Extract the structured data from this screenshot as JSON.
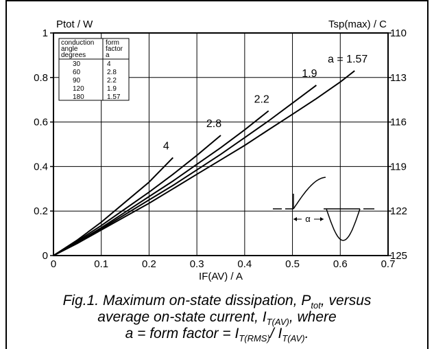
{
  "chart_data": {
    "type": "line",
    "ylabel": "Ptot / W",
    "y2label": "Tsp(max) / C",
    "xlabel": "IF(AV) / A",
    "xlim": [
      0,
      0.7
    ],
    "ylim": [
      0,
      1
    ],
    "y2lim": [
      125,
      110
    ],
    "xticks": [
      "0",
      "0.1",
      "0.2",
      "0.3",
      "0.4",
      "0.5",
      "0.6",
      "0.7"
    ],
    "yticks": [
      "0",
      "0.2",
      "0.4",
      "0.6",
      "0.8",
      "1"
    ],
    "y2ticks": [
      "125",
      "122",
      "119",
      "116",
      "113",
      "110"
    ],
    "grid": true,
    "series": [
      {
        "name": "4",
        "x": [
          0,
          0.05,
          0.1,
          0.15,
          0.2,
          0.25
        ],
        "y": [
          0,
          0.07,
          0.15,
          0.24,
          0.33,
          0.44
        ]
      },
      {
        "name": "2.8",
        "x": [
          0,
          0.05,
          0.1,
          0.15,
          0.2,
          0.25,
          0.3,
          0.35
        ],
        "y": [
          0,
          0.065,
          0.135,
          0.21,
          0.285,
          0.365,
          0.45,
          0.54
        ]
      },
      {
        "name": "2.2",
        "x": [
          0,
          0.05,
          0.1,
          0.15,
          0.2,
          0.25,
          0.3,
          0.35,
          0.4,
          0.45
        ],
        "y": [
          0,
          0.06,
          0.125,
          0.195,
          0.265,
          0.335,
          0.41,
          0.485,
          0.565,
          0.65
        ]
      },
      {
        "name": "1.9",
        "x": [
          0,
          0.05,
          0.1,
          0.15,
          0.2,
          0.25,
          0.3,
          0.35,
          0.4,
          0.45,
          0.5,
          0.55
        ],
        "y": [
          0,
          0.058,
          0.12,
          0.185,
          0.25,
          0.315,
          0.385,
          0.455,
          0.53,
          0.605,
          0.685,
          0.765
        ]
      },
      {
        "name": "1.57",
        "x": [
          0,
          0.05,
          0.1,
          0.15,
          0.2,
          0.25,
          0.3,
          0.35,
          0.4,
          0.45,
          0.5,
          0.55,
          0.6,
          0.63
        ],
        "y": [
          0,
          0.055,
          0.115,
          0.175,
          0.235,
          0.3,
          0.365,
          0.43,
          0.495,
          0.565,
          0.635,
          0.705,
          0.78,
          0.83
        ]
      }
    ],
    "curve_labels": [
      "4",
      "2.8",
      "2.2",
      "1.9",
      "a = 1.57"
    ],
    "table": {
      "headers": [
        [
          "conduction",
          "angle",
          "degrees"
        ],
        [
          "form",
          "factor",
          "a"
        ]
      ],
      "rows": [
        [
          "30",
          "4"
        ],
        [
          "60",
          "2.8"
        ],
        [
          "90",
          "2.2"
        ],
        [
          "120",
          "1.9"
        ],
        [
          "180",
          "1.57"
        ]
      ]
    },
    "inset_label": "α"
  },
  "caption": {
    "line1_a": "Fig.1.  Maximum on-state dissipation, P",
    "line1_sub": "tot",
    "line1_b": ", versus",
    "line2_a": "average on-state current, I",
    "line2_sub": "T(AV)",
    "line2_b": ", where",
    "line3_a": "a = form factor = I",
    "line3_sub1": "T(RMS)",
    "line3_mid": "/ I",
    "line3_sub2": "T(AV)",
    "line3_b": "."
  }
}
